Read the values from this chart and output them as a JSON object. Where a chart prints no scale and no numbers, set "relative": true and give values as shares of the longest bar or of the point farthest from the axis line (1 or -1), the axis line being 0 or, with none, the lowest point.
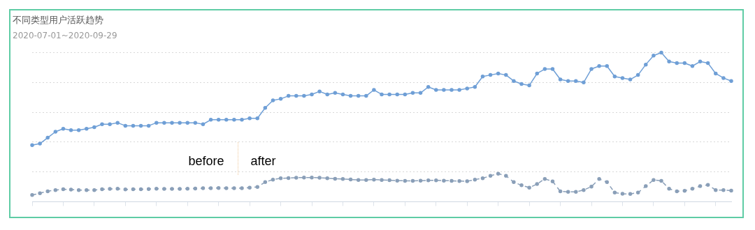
{
  "chart_data": {
    "type": "line",
    "title": "不同类型用户活跃趋势",
    "subtitle": "2020-07-01~2020-09-29",
    "relative": true,
    "categories": [
      null,
      null,
      null,
      null,
      null,
      null,
      null,
      null,
      null,
      null,
      null,
      null,
      null,
      null,
      null,
      null,
      null,
      null,
      null,
      null,
      null,
      null,
      null,
      null,
      null,
      null,
      null,
      null,
      null,
      null,
      null,
      null,
      null,
      null,
      null,
      null,
      null,
      null,
      null,
      null,
      null,
      null,
      null,
      null,
      null,
      null,
      null,
      null,
      null,
      null,
      null,
      null,
      null,
      null,
      null,
      null,
      null,
      null,
      null,
      null,
      null,
      null,
      null,
      null,
      null,
      null,
      null,
      null,
      null,
      null,
      null,
      null,
      null,
      null,
      null,
      null,
      null,
      null,
      null,
      null,
      null,
      null,
      null,
      null,
      null,
      null,
      null,
      null,
      null,
      null,
      null
    ],
    "series": [
      {
        "color": "#6f9fd6",
        "line_style": "solid",
        "values": [
          0.38,
          0.39,
          0.43,
          0.47,
          0.49,
          0.48,
          0.48,
          0.49,
          0.5,
          0.52,
          0.52,
          0.53,
          0.51,
          0.51,
          0.51,
          0.51,
          0.53,
          0.53,
          0.53,
          0.53,
          0.53,
          0.53,
          0.52,
          0.55,
          0.55,
          0.55,
          0.55,
          0.55,
          0.56,
          0.56,
          0.63,
          0.68,
          0.69,
          0.71,
          0.71,
          0.71,
          0.72,
          0.74,
          0.72,
          0.73,
          0.72,
          0.71,
          0.71,
          0.71,
          0.75,
          0.72,
          0.72,
          0.72,
          0.72,
          0.73,
          0.73,
          0.77,
          0.75,
          0.75,
          0.75,
          0.75,
          0.76,
          0.77,
          0.84,
          0.85,
          0.86,
          0.85,
          0.81,
          0.79,
          0.78,
          0.86,
          0.89,
          0.89,
          0.82,
          0.81,
          0.81,
          0.8,
          0.89,
          0.91,
          0.91,
          0.84,
          0.83,
          0.82,
          0.85,
          0.92,
          0.98,
          1.0,
          0.94,
          0.93,
          0.93,
          0.91,
          0.94,
          0.93,
          0.86,
          0.83,
          0.81
        ]
      },
      {
        "color": "#8a9fb8",
        "line_style": "dashed",
        "values": [
          0.046,
          0.058,
          0.071,
          0.079,
          0.084,
          0.082,
          0.079,
          0.079,
          0.079,
          0.084,
          0.087,
          0.088,
          0.083,
          0.084,
          0.084,
          0.086,
          0.088,
          0.087,
          0.087,
          0.087,
          0.088,
          0.089,
          0.091,
          0.092,
          0.093,
          0.092,
          0.091,
          0.091,
          0.095,
          0.1,
          0.132,
          0.149,
          0.158,
          0.159,
          0.162,
          0.163,
          0.163,
          0.162,
          0.158,
          0.155,
          0.153,
          0.15,
          0.147,
          0.147,
          0.149,
          0.147,
          0.145,
          0.142,
          0.141,
          0.141,
          0.142,
          0.144,
          0.144,
          0.142,
          0.141,
          0.139,
          0.138,
          0.149,
          0.158,
          0.175,
          0.189,
          0.175,
          0.132,
          0.111,
          0.095,
          0.119,
          0.154,
          0.137,
          0.07,
          0.067,
          0.067,
          0.079,
          0.102,
          0.153,
          0.132,
          0.062,
          0.054,
          0.053,
          0.062,
          0.105,
          0.147,
          0.141,
          0.088,
          0.07,
          0.074,
          0.088,
          0.105,
          0.114,
          0.079,
          0.079,
          0.075
        ]
      }
    ],
    "annotations": [
      "before",
      "after"
    ],
    "marker": "circle",
    "grid": "y",
    "legend": false
  }
}
